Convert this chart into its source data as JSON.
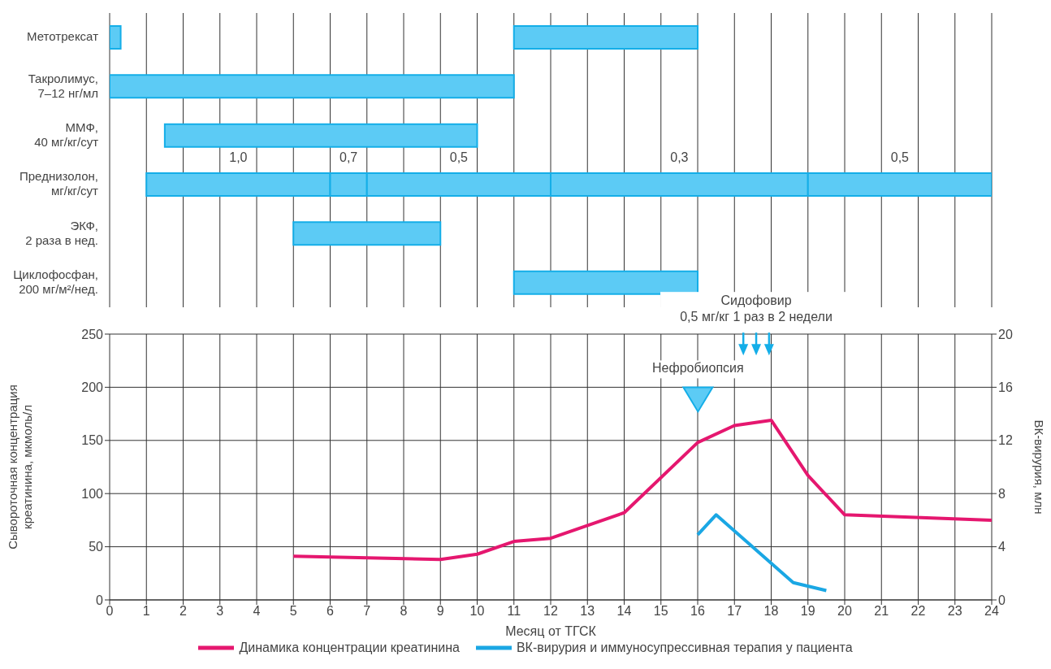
{
  "chart_data": [
    {
      "type": "bar",
      "orientation": "horizontal",
      "categories": [
        "Метотрексат",
        "Такролимус,\n7–12 нг/мл",
        "ММФ,\n40 мг/кг/сут",
        "Преднизолон,\nмг/кг/сут",
        "ЭКФ,\n2 раза в нед.",
        "Циклофосфан,\n200 мг/м²/нед."
      ],
      "series": [
        {
          "color": "#5ccbf5",
          "base": [
            0,
            0,
            1.5,
            1,
            5,
            11
          ],
          "values": [
            0.3,
            11,
            8.5,
            5,
            4,
            5
          ]
        },
        {
          "color": "#5ccbf5",
          "base": [
            11,
            null,
            null,
            6,
            null,
            null
          ],
          "values": [
            5,
            null,
            null,
            1,
            null,
            null
          ]
        },
        {
          "color": "#5ccbf5",
          "base": [
            null,
            null,
            null,
            7,
            null,
            null
          ],
          "values": [
            null,
            null,
            null,
            5,
            null,
            null
          ]
        },
        {
          "color": "#5ccbf5",
          "base": [
            null,
            null,
            null,
            12,
            null,
            null
          ],
          "values": [
            null,
            null,
            null,
            7,
            null,
            null
          ]
        },
        {
          "color": "#5ccbf5",
          "base": [
            null,
            null,
            null,
            19,
            null,
            null
          ],
          "values": [
            null,
            null,
            null,
            5,
            null,
            null
          ]
        }
      ],
      "annotations": [
        "1,0",
        "0,7",
        "0,5",
        "0,3",
        "0,5"
      ],
      "xlim": [
        0,
        24
      ],
      "xticks": [
        0,
        1,
        2,
        3,
        4,
        5,
        6,
        7,
        8,
        9,
        10,
        11,
        12,
        13,
        14,
        15,
        16,
        17,
        18,
        19,
        20,
        21,
        22,
        23,
        24
      ],
      "grid": "x",
      "tick_labels": "y"
    },
    {
      "type": "line",
      "xlabel": "Месяц от ТГСК",
      "ylabel": "Сывороточная концентрация\nкреатинина, мкмоль/л",
      "y2label": "ВК-вирурия, млн",
      "series": [
        {
          "name": "Динамика концентрации креатинина",
          "color": "#e5176f",
          "x": [
            5,
            9,
            10,
            11,
            12,
            14,
            16,
            17,
            18,
            19,
            20,
            24
          ],
          "values": [
            41,
            38,
            43,
            55,
            58,
            82,
            148,
            164,
            169,
            117,
            80,
            75
          ]
        },
        {
          "name": "ВК-вирурия и иммуносупрессивная терапия у пациента",
          "color": "#1aa7e4",
          "axis": "y2",
          "x": [
            16,
            16.5,
            18.6,
            19.5
          ],
          "values": [
            4.9,
            6.4,
            1.3,
            0.7
          ]
        }
      ],
      "xlim": [
        0,
        24
      ],
      "xticks": [
        0,
        1,
        2,
        3,
        4,
        5,
        6,
        7,
        8,
        9,
        10,
        11,
        12,
        13,
        14,
        15,
        16,
        17,
        18,
        19,
        20,
        21,
        22,
        23,
        24
      ],
      "ylim": [
        0,
        250
      ],
      "yticks": [
        0,
        50,
        100,
        150,
        200,
        250
      ],
      "y2lim": [
        0,
        20
      ],
      "y2ticks": [
        0,
        4,
        8,
        12,
        16,
        20
      ],
      "grid": true,
      "legend": "bottom",
      "annotations": [
        "Нефробиопсия",
        "Сидофовир\n0,5 мг/кг 1 раз в 2 недели"
      ]
    }
  ]
}
